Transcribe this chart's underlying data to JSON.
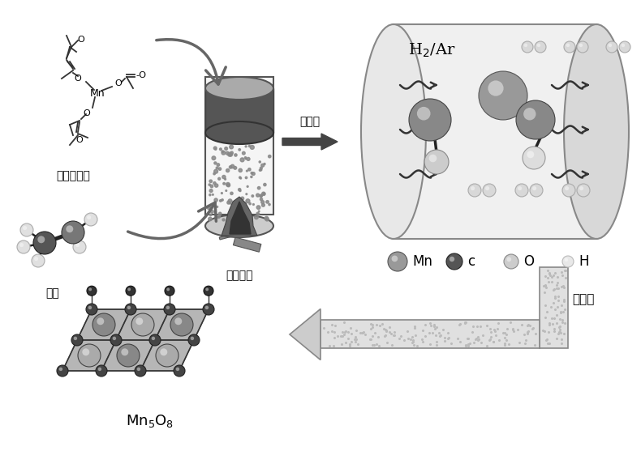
{
  "bg_color": "#ffffff",
  "label_acac_mn": "乙酰丙酮锰",
  "label_ethanol": "乙醇",
  "label_hydrothermal": "水热处理",
  "label_thermal_reduction": "热还原",
  "label_electro_reduction": "电还原",
  "legend_mn": "Mn",
  "legend_c": "c",
  "legend_o": "O",
  "legend_h": "H",
  "color_mn": "#888888",
  "color_c": "#555555",
  "color_o": "#cccccc",
  "color_h": "#eeeeee",
  "color_bond": "#222222",
  "color_dark": "#333333",
  "color_arrow": "#666666",
  "color_cyl_body": "#f0f0f0",
  "color_cyl_cap": "#555555",
  "color_box_bg": "#f5f5f5"
}
